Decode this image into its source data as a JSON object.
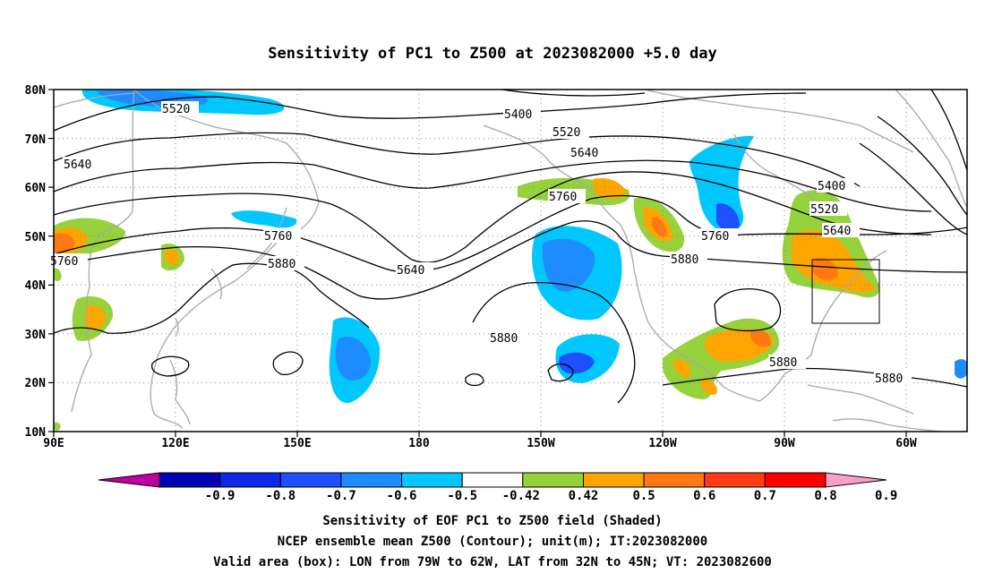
{
  "title": "Sensitivity of PC1 to Z500 at 2023082000 +5.0 day",
  "map": {
    "lat_labels": [
      "80N",
      "70N",
      "60N",
      "50N",
      "40N",
      "30N",
      "20N",
      "10N"
    ],
    "lon_labels": [
      "90E",
      "120E",
      "150E",
      "180",
      "150W",
      "120W",
      "90W",
      "60W"
    ],
    "contour_labels": [
      "5520",
      "5400",
      "5520",
      "5640",
      "5640",
      "5760",
      "5760",
      "5880",
      "5640",
      "5880",
      "5760",
      "5880",
      "5400",
      "5520",
      "5640",
      "5880",
      "5880",
      "5760"
    ],
    "valid_box": {
      "lon_range": [
        "79W",
        "62W"
      ],
      "lat_range": [
        "32N",
        "45N"
      ]
    }
  },
  "colorbar": {
    "labels": [
      "-0.9",
      "-0.8",
      "-0.7",
      "-0.6",
      "-0.5",
      "-0.42",
      "0.42",
      "0.5",
      "0.6",
      "0.7",
      "0.8",
      "0.9"
    ],
    "colors": [
      "#c000a0",
      "#0000b4",
      "#0a28e6",
      "#1e50ff",
      "#1e8cff",
      "#00c8ff",
      "#ffffff",
      "#96d23c",
      "#ffa500",
      "#ff7814",
      "#ff3c14",
      "#ff0000",
      "#f8a0c8"
    ]
  },
  "footer": {
    "line1": "Sensitivity of EOF PC1 to Z500 field (Shaded)",
    "line2": "NCEP ensemble mean Z500 (Contour); unit(m); IT:2023082000",
    "line3": "Valid area (box): LON from 79W to 62W, LAT from 32N to 45N; VT: 2023082600"
  }
}
